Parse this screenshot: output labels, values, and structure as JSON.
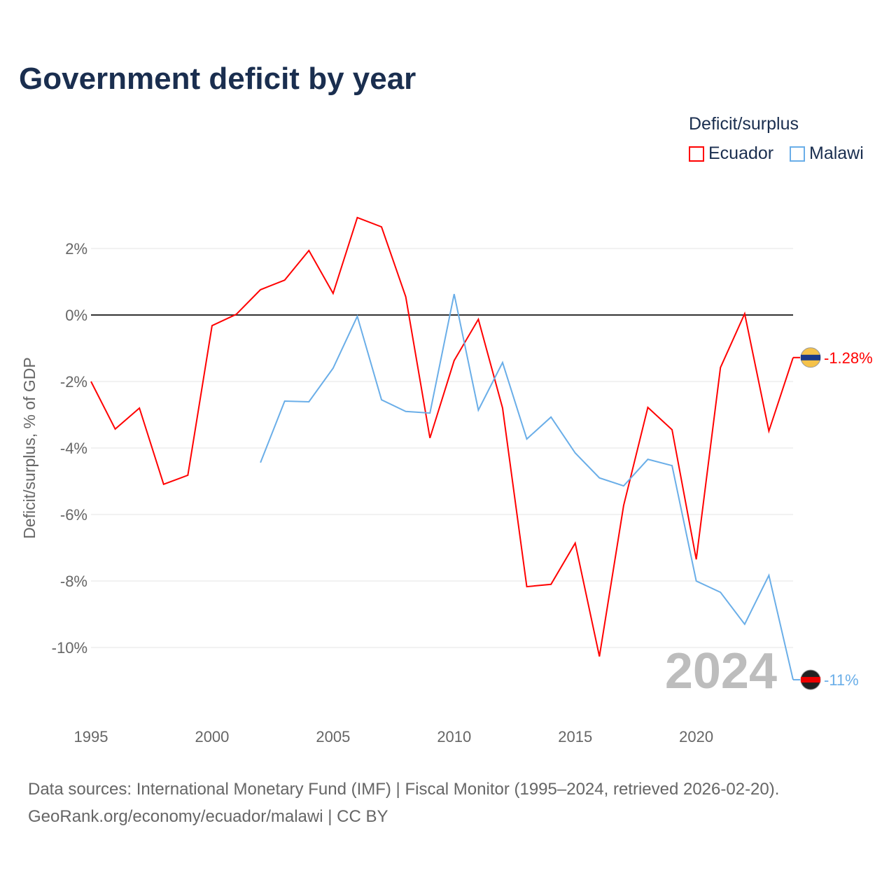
{
  "title": "Government deficit by year",
  "legend": {
    "title": "Deficit/surplus",
    "items": [
      {
        "label": "Ecuador",
        "color": "#ff0000"
      },
      {
        "label": "Malawi",
        "color": "#6aaee8"
      }
    ]
  },
  "footer": {
    "line1": "Data sources: International Monetary Fund (IMF) | Fiscal Monitor (1995–2024, retrieved 2026-02-20).",
    "line2": "GeoRank.org/economy/ecuador/malawi | CC BY"
  },
  "chart_data": {
    "type": "line",
    "title": "Government deficit by year",
    "ylabel": "Deficit/surplus, % of GDP",
    "xlabel": "",
    "xlim": [
      1995,
      2024
    ],
    "ylim": [
      -12,
      3.5
    ],
    "xticks": [
      1995,
      2000,
      2005,
      2010,
      2015,
      2020
    ],
    "yticks": [
      {
        "v": 2,
        "label": "2%"
      },
      {
        "v": 0,
        "label": "0%"
      },
      {
        "v": -2,
        "label": "-2%"
      },
      {
        "v": -4,
        "label": "-4%"
      },
      {
        "v": -6,
        "label": "-6%"
      },
      {
        "v": -8,
        "label": "-8%"
      },
      {
        "v": -10,
        "label": "-10%"
      }
    ],
    "year_watermark": "2024",
    "series": [
      {
        "name": "Ecuador",
        "color": "#ff0000",
        "end_label": "-1.28%",
        "x": [
          1995,
          1996,
          1997,
          1998,
          1999,
          2000,
          2001,
          2002,
          2003,
          2004,
          2005,
          2006,
          2007,
          2008,
          2009,
          2010,
          2011,
          2012,
          2013,
          2014,
          2015,
          2016,
          2017,
          2018,
          2019,
          2020,
          2021,
          2022,
          2023,
          2024
        ],
        "y": [
          -2.0,
          -3.43,
          -2.8,
          -5.09,
          -4.82,
          -0.32,
          0.02,
          0.76,
          1.05,
          1.94,
          0.65,
          2.93,
          2.65,
          0.55,
          -3.7,
          -1.37,
          -0.13,
          -2.8,
          -8.17,
          -8.1,
          -6.86,
          -10.27,
          -5.73,
          -2.78,
          -3.45,
          -7.35,
          -1.58,
          0.04,
          -3.49,
          -1.28
        ]
      },
      {
        "name": "Malawi",
        "color": "#6aaee8",
        "end_label": "-11%",
        "x": [
          2002,
          2003,
          2004,
          2005,
          2006,
          2007,
          2008,
          2009,
          2010,
          2011,
          2012,
          2013,
          2014,
          2015,
          2016,
          2017,
          2018,
          2019,
          2020,
          2021,
          2022,
          2023,
          2024
        ],
        "y": [
          -4.44,
          -2.59,
          -2.61,
          -1.6,
          -0.04,
          -2.55,
          -2.9,
          -2.95,
          0.63,
          -2.86,
          -1.43,
          -3.73,
          -3.07,
          -4.15,
          -4.9,
          -5.14,
          -4.34,
          -4.53,
          -8.0,
          -8.34,
          -9.3,
          -7.83,
          -10.97
        ]
      }
    ]
  }
}
